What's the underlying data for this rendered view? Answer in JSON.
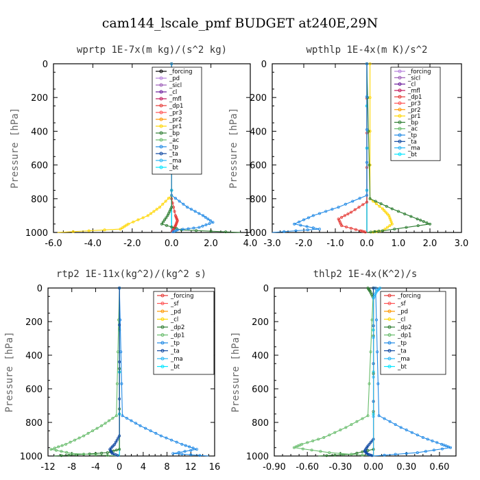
{
  "title": "cam144_lscale_pmf  BUDGET at240E,29N",
  "chart_data": [
    {
      "type": "line",
      "title": "wprtp   1E-7x(m kg)/(s^2 kg)",
      "ylabel": "Pressure [hPa]",
      "xlim": [
        -6,
        4
      ],
      "ylim": [
        1000,
        0
      ],
      "xticks": [
        "-6.0",
        "-4.0",
        "-2.0",
        "0.0",
        "2.0",
        "4.0"
      ],
      "xtick_values": [
        -6,
        -4,
        -2,
        0,
        2,
        4
      ],
      "yticks": [
        "0",
        "200",
        "400",
        "600",
        "800",
        "1000"
      ],
      "ytick_values": [
        0,
        200,
        400,
        600,
        800,
        1000
      ],
      "legend_position": "top-right",
      "series": [
        {
          "name": "_forcing",
          "color": "#000000",
          "p": [
            0,
            1000
          ],
          "x": [
            0,
            0
          ]
        },
        {
          "name": "_pd",
          "color": "#b57edc",
          "p": [
            0,
            1000
          ],
          "x": [
            0,
            0
          ]
        },
        {
          "name": "_sicl",
          "color": "#9b59b6",
          "p": [
            0,
            1000
          ],
          "x": [
            0,
            0
          ]
        },
        {
          "name": "_cl",
          "color": "#6a1b9a",
          "p": [
            0,
            1000
          ],
          "x": [
            0,
            0
          ]
        },
        {
          "name": "_mfl",
          "color": "#c2185b",
          "p": [
            0,
            1000
          ],
          "x": [
            0,
            0
          ]
        },
        {
          "name": "_dp1",
          "color": "#e53935",
          "p": [
            0,
            800,
            900,
            930,
            960,
            980,
            1000
          ],
          "x": [
            0,
            0,
            0.2,
            0.3,
            0.2,
            0.1,
            0
          ]
        },
        {
          "name": "_pr3",
          "color": "#ff5252",
          "p": [
            0,
            1000
          ],
          "x": [
            0,
            0
          ]
        },
        {
          "name": "_pr2",
          "color": "#ff9800",
          "p": [
            0,
            1000
          ],
          "x": [
            0,
            0
          ]
        },
        {
          "name": "_pr1",
          "color": "#ffd600",
          "p": [
            0,
            780,
            850,
            900,
            950,
            980,
            1000
          ],
          "x": [
            0,
            0,
            -0.6,
            -1.2,
            -2.2,
            -2.6,
            -5.8
          ]
        },
        {
          "name": "_bp",
          "color": "#2e7d32",
          "p": [
            0,
            850,
            900,
            950,
            985,
            1000
          ],
          "x": [
            0,
            0,
            -0.2,
            -0.5,
            0.5,
            3.5
          ]
        },
        {
          "name": "_ac",
          "color": "#66bb6a",
          "p": [
            0,
            1000
          ],
          "x": [
            0,
            0
          ]
        },
        {
          "name": "_tp",
          "color": "#1e88e5",
          "p": [
            0,
            780,
            850,
            900,
            940,
            970,
            985,
            1000
          ],
          "x": [
            0,
            0,
            0.8,
            1.6,
            2.1,
            1.4,
            0.3,
            0
          ]
        },
        {
          "name": "_ta",
          "color": "#0d47a1",
          "p": [
            0,
            1000
          ],
          "x": [
            0,
            0
          ]
        },
        {
          "name": "_ma",
          "color": "#29b6f6",
          "p": [
            0,
            1000
          ],
          "x": [
            0,
            0
          ]
        },
        {
          "name": "_bt",
          "color": "#00e5ff",
          "p": [
            0,
            1000
          ],
          "x": [
            0,
            0
          ]
        }
      ]
    },
    {
      "type": "line",
      "title": "wpthlp   1E-4x(m K)/s^2",
      "ylabel": "Pressure [hPa]",
      "xlim": [
        -3,
        3
      ],
      "ylim": [
        1000,
        0
      ],
      "xticks": [
        "-3.0",
        "-2.0",
        "-1.0",
        "0.0",
        "1.0",
        "2.0",
        "3.0"
      ],
      "xtick_values": [
        -3,
        -2,
        -1,
        0,
        1,
        2,
        3
      ],
      "yticks": [
        "0",
        "200",
        "400",
        "600",
        "800",
        "1000"
      ],
      "ytick_values": [
        0,
        200,
        400,
        600,
        800,
        1000
      ],
      "legend_position": "top-right",
      "series": [
        {
          "name": "_forcing",
          "color": "#b57edc",
          "p": [
            0,
            1000
          ],
          "x": [
            0,
            0
          ]
        },
        {
          "name": "_sicl",
          "color": "#9b59b6",
          "p": [
            0,
            1000
          ],
          "x": [
            0,
            0
          ]
        },
        {
          "name": "_cl",
          "color": "#6a1b9a",
          "p": [
            0,
            1000
          ],
          "x": [
            0,
            0
          ]
        },
        {
          "name": "_mfl",
          "color": "#c2185b",
          "p": [
            0,
            1000
          ],
          "x": [
            0,
            0
          ]
        },
        {
          "name": "_dp1",
          "color": "#e53935",
          "p": [
            0,
            820,
            880,
            920,
            960,
            990,
            1000
          ],
          "x": [
            0,
            0,
            -0.5,
            -0.9,
            -0.8,
            -0.2,
            0
          ]
        },
        {
          "name": "_pr3",
          "color": "#ff5252",
          "p": [
            0,
            1000
          ],
          "x": [
            0,
            0
          ]
        },
        {
          "name": "_pr2",
          "color": "#ff9800",
          "p": [
            0,
            1000
          ],
          "x": [
            0,
            0
          ]
        },
        {
          "name": "_pr1",
          "color": "#ffd600",
          "p": [
            0,
            800,
            860,
            900,
            950,
            990,
            1000
          ],
          "x": [
            0.1,
            0.1,
            0.5,
            0.7,
            0.8,
            0.5,
            0.1
          ]
        },
        {
          "name": "_bp",
          "color": "#2e7d32",
          "p": [
            0,
            800,
            860,
            920,
            950,
            990,
            1000
          ],
          "x": [
            0,
            0.1,
            0.8,
            1.6,
            2.0,
            0.5,
            0
          ]
        },
        {
          "name": "_ac",
          "color": "#66bb6a",
          "p": [
            0,
            1000
          ],
          "x": [
            0,
            0
          ]
        },
        {
          "name": "_tp",
          "color": "#1e88e5",
          "p": [
            0,
            780,
            850,
            900,
            950,
            980,
            1000
          ],
          "x": [
            0,
            0,
            -0.9,
            -1.7,
            -2.3,
            -1.5,
            -3.0
          ]
        },
        {
          "name": "_ta",
          "color": "#0d47a1",
          "p": [
            0,
            1000
          ],
          "x": [
            0,
            0
          ]
        },
        {
          "name": "_ma",
          "color": "#29b6f6",
          "p": [
            0,
            1000
          ],
          "x": [
            0,
            0
          ]
        },
        {
          "name": "_bt",
          "color": "#00e5ff",
          "p": [
            0,
            1000
          ],
          "x": [
            0,
            0
          ]
        }
      ]
    },
    {
      "type": "line",
      "title": "rtp2   1E-11x(kg^2)/(kg^2 s)",
      "ylabel": "Pressure [hPa]",
      "xlim": [
        -12,
        16
      ],
      "ylim": [
        1000,
        0
      ],
      "xticks": [
        "-12",
        "-8",
        "-4",
        "0",
        "4",
        "8",
        "12",
        "16"
      ],
      "xtick_values": [
        -12,
        -8,
        -4,
        0,
        4,
        8,
        12,
        16
      ],
      "yticks": [
        "0",
        "200",
        "400",
        "600",
        "800",
        "1000"
      ],
      "ytick_values": [
        0,
        200,
        400,
        600,
        800,
        1000
      ],
      "legend_position": "top-right",
      "series": [
        {
          "name": "_forcing",
          "color": "#e53935",
          "p": [
            0,
            1000
          ],
          "x": [
            0,
            0
          ]
        },
        {
          "name": "_sf",
          "color": "#ff5252",
          "p": [
            0,
            1000
          ],
          "x": [
            0,
            0
          ]
        },
        {
          "name": "_pd",
          "color": "#ff9800",
          "p": [
            0,
            1000
          ],
          "x": [
            0,
            0
          ]
        },
        {
          "name": "_cl",
          "color": "#ffd600",
          "p": [
            0,
            1000
          ],
          "x": [
            0,
            0
          ]
        },
        {
          "name": "_dp2",
          "color": "#2e7d32",
          "p": [
            0,
            960,
            980,
            990,
            1000
          ],
          "x": [
            0,
            0,
            -2,
            -6,
            -11
          ]
        },
        {
          "name": "_dp1",
          "color": "#66bb6a",
          "p": [
            0,
            760,
            820,
            880,
            930,
            960,
            985,
            1000
          ],
          "x": [
            0,
            -0.5,
            -3,
            -6,
            -9,
            -11.5,
            -8,
            0
          ]
        },
        {
          "name": "_tp",
          "color": "#1e88e5",
          "p": [
            0,
            760,
            820,
            880,
            930,
            960,
            985,
            1000
          ],
          "x": [
            0,
            0.5,
            3.5,
            7,
            10.5,
            13,
            9,
            15
          ]
        },
        {
          "name": "_ta",
          "color": "#0d47a1",
          "p": [
            0,
            880,
            930,
            960,
            985,
            1000
          ],
          "x": [
            0,
            0,
            -0.8,
            -1.6,
            -1.2,
            0
          ]
        },
        {
          "name": "_ma",
          "color": "#29b6f6",
          "p": [
            0,
            1000
          ],
          "x": [
            0,
            0
          ]
        },
        {
          "name": "_bt",
          "color": "#00e5ff",
          "p": [
            0,
            1000
          ],
          "x": [
            0,
            0
          ]
        }
      ]
    },
    {
      "type": "line",
      "title": "thlp2   1E-4x(K^2)/s",
      "ylabel": "Pressure [hPa]",
      "xlim": [
        -0.9,
        0.75
      ],
      "ylim": [
        1000,
        0
      ],
      "xticks": [
        "-0.90",
        "-0.60",
        "-0.30",
        "0.00",
        "0.30",
        "0.60"
      ],
      "xtick_values": [
        -0.9,
        -0.6,
        -0.3,
        0,
        0.3,
        0.6
      ],
      "yticks": [
        "0",
        "200",
        "400",
        "600",
        "800",
        "1000"
      ],
      "ytick_values": [
        0,
        200,
        400,
        600,
        800,
        1000
      ],
      "legend_position": "top-right",
      "series": [
        {
          "name": "_forcing",
          "color": "#e53935",
          "p": [
            0,
            1000
          ],
          "x": [
            0,
            0
          ]
        },
        {
          "name": "_sf",
          "color": "#ff5252",
          "p": [
            0,
            1000
          ],
          "x": [
            0,
            0
          ]
        },
        {
          "name": "_pd",
          "color": "#ff9800",
          "p": [
            0,
            1000
          ],
          "x": [
            0,
            0
          ]
        },
        {
          "name": "_cl",
          "color": "#ffd600",
          "p": [
            0,
            1000
          ],
          "x": [
            0,
            0
          ]
        },
        {
          "name": "_dp2",
          "color": "#2e7d32",
          "p": [
            0,
            20,
            60,
            960,
            990,
            1000
          ],
          "x": [
            -0.05,
            -0.03,
            0,
            0,
            -0.2,
            -0.5
          ]
        },
        {
          "name": "_dp1",
          "color": "#66bb6a",
          "p": [
            0,
            760,
            830,
            890,
            930,
            950,
            980,
            1000
          ],
          "x": [
            0,
            -0.05,
            -0.25,
            -0.45,
            -0.65,
            -0.72,
            -0.4,
            0
          ]
        },
        {
          "name": "_tp",
          "color": "#1e88e5",
          "p": [
            0,
            760,
            830,
            890,
            930,
            950,
            980,
            1000
          ],
          "x": [
            0.02,
            0.05,
            0.25,
            0.45,
            0.62,
            0.7,
            0.4,
            0
          ]
        },
        {
          "name": "_ta",
          "color": "#0d47a1",
          "p": [
            0,
            900,
            940,
            970,
            990,
            1000
          ],
          "x": [
            0,
            0,
            -0.05,
            -0.08,
            -0.05,
            0
          ]
        },
        {
          "name": "_ma",
          "color": "#29b6f6",
          "p": [
            0,
            20,
            60,
            1000
          ],
          "x": [
            0.06,
            0.03,
            0,
            0
          ]
        },
        {
          "name": "_bt",
          "color": "#00e5ff",
          "p": [
            0,
            1000
          ],
          "x": [
            0,
            0
          ]
        }
      ]
    }
  ]
}
